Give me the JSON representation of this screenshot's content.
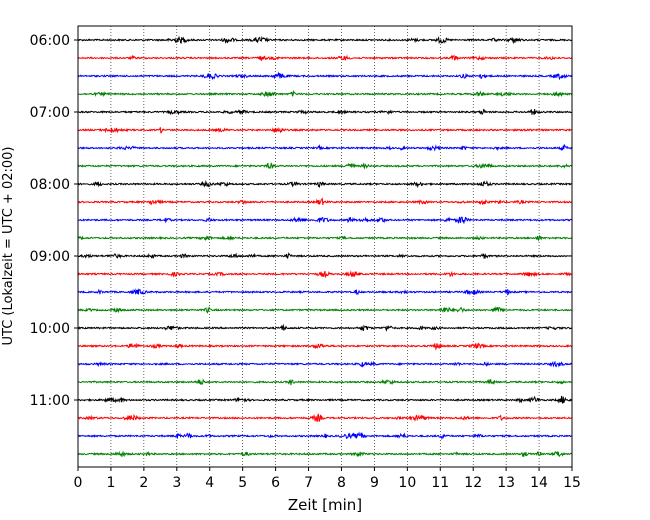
{
  "chart_data": {
    "type": "line",
    "title": "",
    "xlabel": "Zeit  [min]",
    "ylabel": "UTC (Lokalzeit = UTC + 02:00)",
    "xlim": [
      0,
      15
    ],
    "x_ticks": [
      0,
      1,
      2,
      3,
      4,
      5,
      6,
      7,
      8,
      9,
      10,
      11,
      12,
      13,
      14,
      15
    ],
    "x_grid": "dotted vertical lines at each minute",
    "y_ticks": [
      "06:00",
      "07:00",
      "08:00",
      "09:00",
      "10:00",
      "11:00"
    ],
    "trace_interval_minutes": 15,
    "traces": [
      {
        "start": "06:00",
        "color": "#000000"
      },
      {
        "start": "06:15",
        "color": "#ff0000"
      },
      {
        "start": "06:30",
        "color": "#0000ff"
      },
      {
        "start": "06:45",
        "color": "#008000"
      },
      {
        "start": "07:00",
        "color": "#000000"
      },
      {
        "start": "07:15",
        "color": "#ff0000"
      },
      {
        "start": "07:30",
        "color": "#0000ff"
      },
      {
        "start": "07:45",
        "color": "#008000"
      },
      {
        "start": "08:00",
        "color": "#000000"
      },
      {
        "start": "08:15",
        "color": "#ff0000"
      },
      {
        "start": "08:30",
        "color": "#0000ff"
      },
      {
        "start": "08:45",
        "color": "#008000"
      },
      {
        "start": "09:00",
        "color": "#000000"
      },
      {
        "start": "09:15",
        "color": "#ff0000"
      },
      {
        "start": "09:30",
        "color": "#0000ff"
      },
      {
        "start": "09:45",
        "color": "#008000"
      },
      {
        "start": "10:00",
        "color": "#000000"
      },
      {
        "start": "10:15",
        "color": "#ff0000"
      },
      {
        "start": "10:30",
        "color": "#0000ff"
      },
      {
        "start": "10:45",
        "color": "#008000"
      },
      {
        "start": "11:00",
        "color": "#000000"
      },
      {
        "start": "11:15",
        "color": "#ff0000"
      },
      {
        "start": "11:30",
        "color": "#0000ff"
      },
      {
        "start": "11:45",
        "color": "#008000"
      }
    ],
    "legend": "none"
  }
}
